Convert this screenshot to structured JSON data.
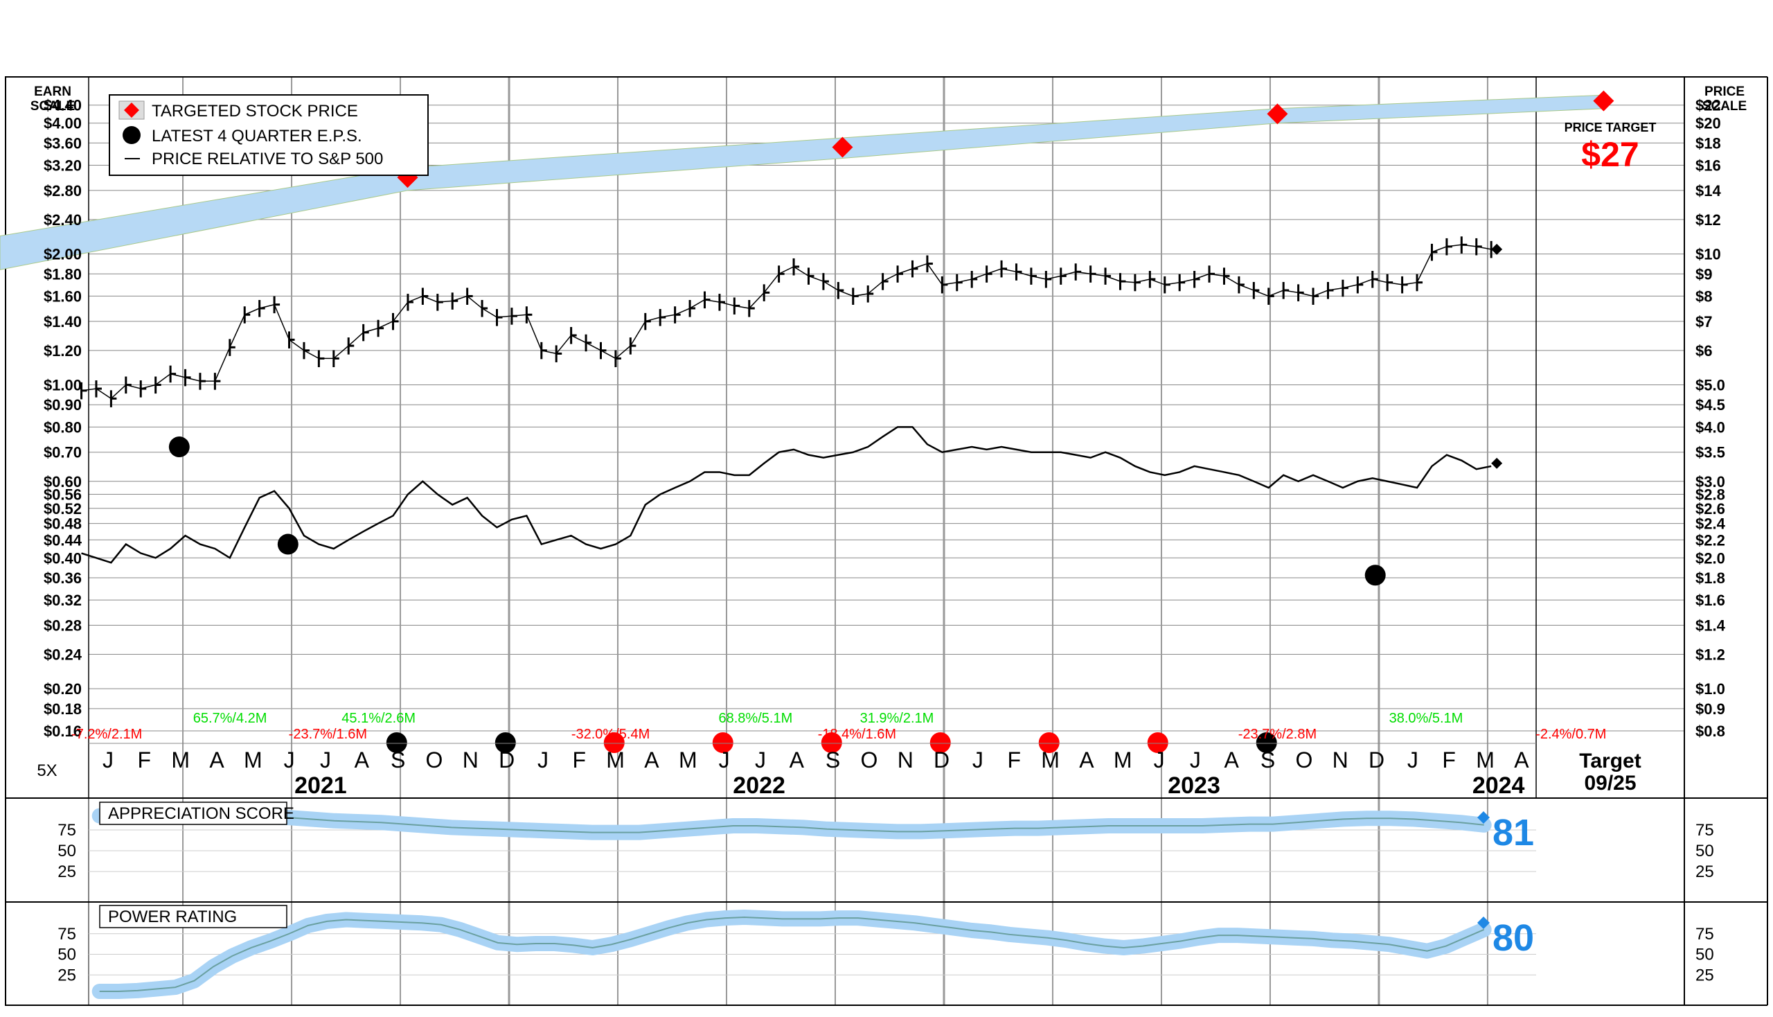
{
  "chart_data": {
    "type": "line",
    "legend": {
      "placement": "top-left",
      "items": [
        {
          "label": "TARGETED STOCK PRICE",
          "marker": "red-diamond-icon"
        },
        {
          "label": "LATEST 4 QUARTER E.P.S.",
          "marker": "black-dot-icon"
        },
        {
          "label": "PRICE RELATIVE TO S&P 500",
          "marker": "line-icon"
        }
      ]
    },
    "earn_scale_label": [
      "EARN",
      "SCALE"
    ],
    "price_scale_label": [
      "PRICE",
      "SCALE"
    ],
    "earn_ticks": [
      "$4.40",
      "$4.00",
      "$3.60",
      "$3.20",
      "$2.80",
      "$2.40",
      "$2.00",
      "$1.80",
      "$1.60",
      "$1.40",
      "$1.20",
      "$1.00",
      "$0.90",
      "$0.80",
      "$0.70",
      "$0.60",
      "$0.56",
      "$0.52",
      "$0.48",
      "$0.44",
      "$0.40",
      "$0.36",
      "$0.32",
      "$0.28",
      "$0.24",
      "$0.20",
      "$0.18",
      "$0.16"
    ],
    "price_ticks": [
      "$22",
      "$20",
      "$18",
      "$16",
      "$14",
      "$12",
      "$10",
      "$9",
      "$8",
      "$7",
      "$6",
      "$5.0",
      "$4.5",
      "$4.0",
      "$3.5",
      "$3.0",
      "$2.8",
      "$2.6",
      "$2.4",
      "$2.2",
      "$2.0",
      "$1.8",
      "$1.6",
      "$1.4",
      "$1.2",
      "$1.0",
      "$0.9",
      "$0.8"
    ],
    "price_target": {
      "label": "PRICE TARGET",
      "value": "$27"
    },
    "months": [
      "J",
      "F",
      "M",
      "A",
      "M",
      "J",
      "J",
      "A",
      "S",
      "O",
      "N",
      "D",
      "J",
      "F",
      "M",
      "A",
      "M",
      "J",
      "J",
      "A",
      "S",
      "O",
      "N",
      "D",
      "J",
      "F",
      "M",
      "A",
      "M",
      "J",
      "J",
      "A",
      "S",
      "O",
      "N",
      "D",
      "J",
      "F",
      "M",
      "A"
    ],
    "years": [
      "2021",
      "2022",
      "2023",
      "2024"
    ],
    "ratio_label": "5X",
    "target_box": {
      "title": "Target",
      "date": "09/25"
    },
    "targeted_price_points": [
      {
        "quarter": 9,
        "price": 15
      },
      {
        "quarter": 21,
        "price": 17.6
      },
      {
        "quarter": 33,
        "price": 21
      },
      {
        "quarter": 42,
        "price": 22.5
      }
    ],
    "eps_points": [
      {
        "month": 2.5,
        "eps": 0.72
      },
      {
        "month": 5.5,
        "eps": 0.43
      },
      {
        "month": 8.5,
        "eps": 0.155,
        "color": "black"
      },
      {
        "month": 11.5,
        "eps": 0.155,
        "color": "black"
      },
      {
        "month": 14.5,
        "eps": 0.155,
        "color": "red"
      },
      {
        "month": 17.5,
        "eps": 0.155,
        "color": "red"
      },
      {
        "month": 20.5,
        "eps": 0.155,
        "color": "red"
      },
      {
        "month": 23.5,
        "eps": 0.155,
        "color": "red"
      },
      {
        "month": 26.5,
        "eps": 0.155,
        "color": "red"
      },
      {
        "month": 29.5,
        "eps": 0.155,
        "color": "red"
      },
      {
        "month": 32.5,
        "eps": 0.155,
        "color": "black"
      },
      {
        "month": 35.5,
        "eps": 0.365
      }
    ],
    "quarter_labels": [
      {
        "text": "-7.2%/2.1M",
        "color": "red",
        "month": 0.5
      },
      {
        "text": "65.7%/4.2M",
        "color": "green",
        "month": 3.9
      },
      {
        "text": "-23.7%/1.6M",
        "color": "red",
        "month": 6.6
      },
      {
        "text": "45.1%/2.6M",
        "color": "green",
        "month": 8.0
      },
      {
        "text": "-32.0%/5.4M",
        "color": "red",
        "month": 14.4
      },
      {
        "text": "68.8%/5.1M",
        "color": "green",
        "month": 18.4
      },
      {
        "text": "-18.4%/1.6M",
        "color": "red",
        "month": 21.2
      },
      {
        "text": "31.9%/2.1M",
        "color": "green",
        "month": 22.3
      },
      {
        "text": "-23.7%/2.8M",
        "color": "red",
        "month": 32.8
      },
      {
        "text": "38.0%/5.1M",
        "color": "green",
        "month": 36.9
      },
      {
        "text": "-2.4%/0.7M",
        "color": "red",
        "month": 40.9
      }
    ],
    "weekly_price": [
      0.97,
      0.98,
      0.93,
      1.0,
      0.98,
      1.0,
      1.06,
      1.04,
      1.02,
      1.02,
      1.22,
      1.45,
      1.5,
      1.53,
      1.27,
      1.2,
      1.15,
      1.15,
      1.23,
      1.32,
      1.35,
      1.4,
      1.55,
      1.6,
      1.55,
      1.56,
      1.6,
      1.5,
      1.43,
      1.44,
      1.45,
      1.2,
      1.18,
      1.3,
      1.25,
      1.2,
      1.15,
      1.23,
      1.4,
      1.43,
      1.45,
      1.5,
      1.57,
      1.55,
      1.52,
      1.5,
      1.63,
      1.8,
      1.87,
      1.78,
      1.73,
      1.65,
      1.6,
      1.62,
      1.73,
      1.8,
      1.85,
      1.9,
      1.7,
      1.72,
      1.75,
      1.8,
      1.85,
      1.82,
      1.78,
      1.75,
      1.78,
      1.82,
      1.8,
      1.78,
      1.73,
      1.72,
      1.75,
      1.7,
      1.72,
      1.75,
      1.8,
      1.78,
      1.7,
      1.65,
      1.6,
      1.65,
      1.63,
      1.6,
      1.65,
      1.67,
      1.7,
      1.75,
      1.72,
      1.7,
      1.72,
      2.02,
      2.08,
      2.1,
      2.08,
      2.05
    ],
    "relative_sp500": [
      0.41,
      0.4,
      0.39,
      0.43,
      0.41,
      0.4,
      0.42,
      0.45,
      0.43,
      0.42,
      0.4,
      0.47,
      0.55,
      0.57,
      0.52,
      0.45,
      0.43,
      0.42,
      0.44,
      0.46,
      0.48,
      0.5,
      0.56,
      0.6,
      0.56,
      0.53,
      0.55,
      0.5,
      0.47,
      0.49,
      0.5,
      0.43,
      0.44,
      0.45,
      0.43,
      0.42,
      0.43,
      0.45,
      0.53,
      0.56,
      0.58,
      0.6,
      0.63,
      0.63,
      0.62,
      0.62,
      0.66,
      0.7,
      0.71,
      0.69,
      0.68,
      0.69,
      0.7,
      0.72,
      0.76,
      0.8,
      0.8,
      0.73,
      0.7,
      0.71,
      0.72,
      0.71,
      0.72,
      0.71,
      0.7,
      0.7,
      0.7,
      0.69,
      0.68,
      0.7,
      0.68,
      0.65,
      0.63,
      0.62,
      0.63,
      0.65,
      0.64,
      0.63,
      0.62,
      0.6,
      0.58,
      0.62,
      0.6,
      0.62,
      0.6,
      0.58,
      0.6,
      0.61,
      0.6,
      0.59,
      0.58,
      0.65,
      0.69,
      0.67,
      0.64,
      0.65
    ],
    "last_price_marker": 2.05,
    "last_rel_marker": 0.66,
    "appreciation_score": {
      "title": "APPRECIATION SCORE",
      "value": "81",
      "ticks": [
        "75",
        "50",
        "25"
      ],
      "series": [
        92,
        92,
        91,
        91,
        92,
        93,
        93,
        91,
        90,
        88,
        86,
        85,
        84,
        82,
        80,
        78,
        77,
        76,
        75,
        74,
        73,
        72,
        72,
        72,
        74,
        76,
        78,
        80,
        80,
        79,
        78,
        76,
        75,
        74,
        73,
        73,
        74,
        75,
        76,
        77,
        77,
        78,
        79,
        80,
        80,
        80,
        80,
        80,
        81,
        82,
        82,
        84,
        86,
        88,
        89,
        89,
        88,
        86,
        84,
        81
      ]
    },
    "power_rating": {
      "title": "POWER RATING",
      "value": "80",
      "ticks": [
        "75",
        "50",
        "25"
      ],
      "series": [
        5,
        5,
        6,
        8,
        10,
        18,
        35,
        48,
        58,
        66,
        75,
        85,
        90,
        92,
        91,
        90,
        89,
        88,
        86,
        80,
        72,
        64,
        62,
        63,
        63,
        61,
        58,
        62,
        68,
        75,
        82,
        88,
        92,
        94,
        95,
        94,
        93,
        93,
        93,
        94,
        94,
        92,
        90,
        88,
        85,
        82,
        79,
        77,
        74,
        72,
        70,
        67,
        63,
        60,
        58,
        60,
        63,
        66,
        70,
        73,
        73,
        72,
        71,
        70,
        69,
        67,
        66,
        64,
        62,
        58,
        54,
        60,
        70,
        80
      ]
    },
    "colors": {
      "target_band": "#b7d9f5",
      "target_diamond": "#ff0000",
      "positive": "#00dd00",
      "negative": "#ff0000",
      "score_blue": "#1e88e5",
      "grid": "#888888"
    }
  }
}
